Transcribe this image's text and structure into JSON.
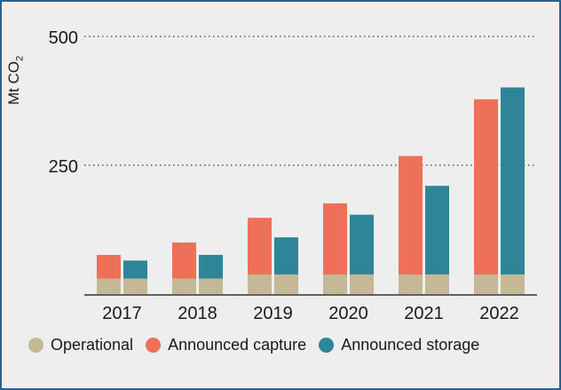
{
  "chart_data": {
    "type": "bar",
    "stacked": true,
    "categories": [
      "2017",
      "2018",
      "2019",
      "2020",
      "2021",
      "2022"
    ],
    "series": [
      {
        "name": "Operational",
        "color": "#c4b896",
        "capture": [
          30,
          30,
          38,
          38,
          38,
          38
        ],
        "storage": [
          30,
          30,
          38,
          38,
          38,
          38
        ]
      },
      {
        "name": "Announced capture",
        "color": "#ee7058",
        "values": [
          46,
          70,
          110,
          138,
          230,
          340
        ]
      },
      {
        "name": "Announced storage",
        "color": "#2e8597",
        "values": [
          35,
          46,
          72,
          116,
          172,
          363
        ]
      }
    ],
    "ylabel_main": "Mt CO",
    "ylabel_sub": "2",
    "yticks": [
      250,
      500
    ],
    "ylim": [
      0,
      500
    ],
    "grid": true,
    "legend_position": "bottom"
  }
}
